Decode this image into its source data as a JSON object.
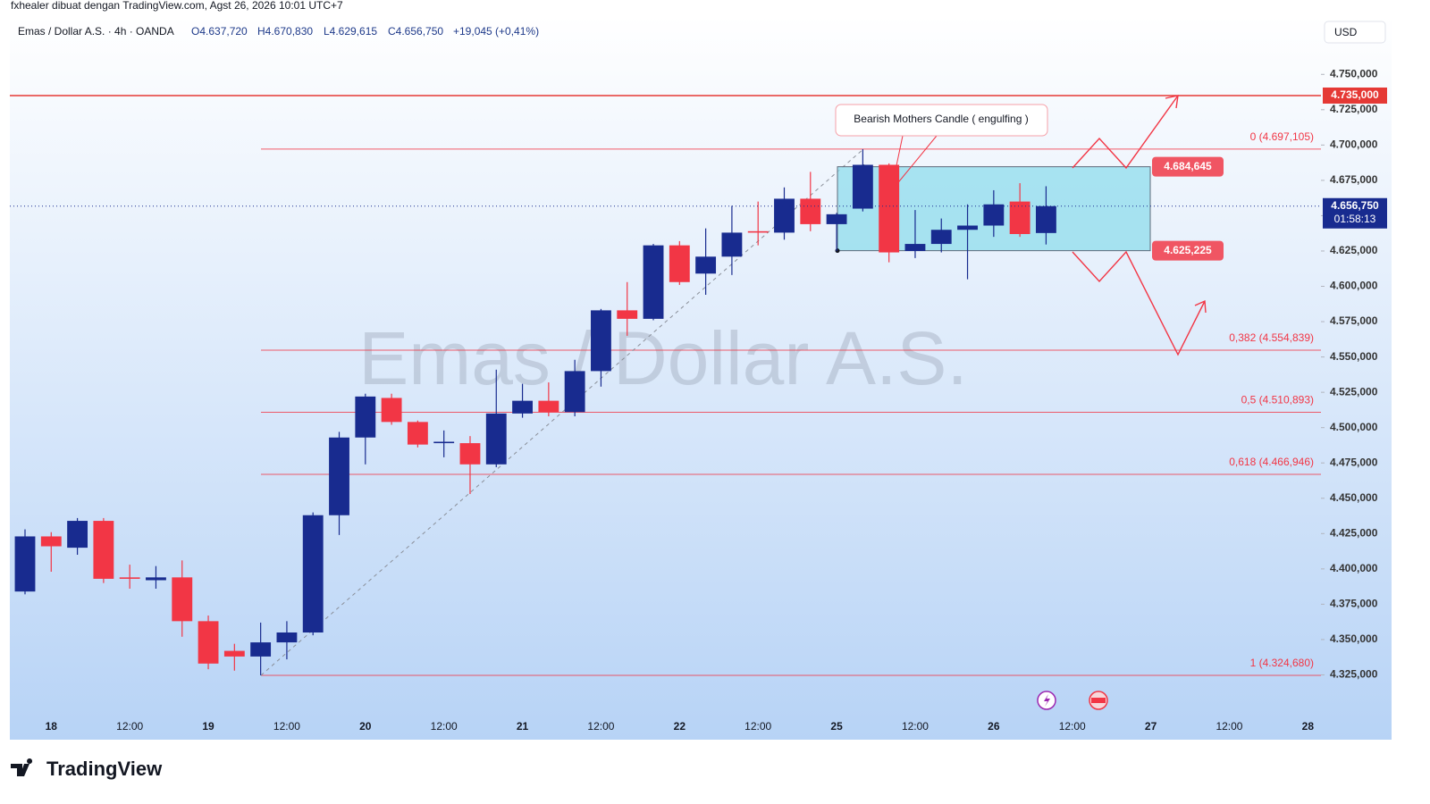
{
  "header": {
    "caption": "fxhealer dibuat dengan TradingView.com, Agst 26, 2026 10:01 UTC+7",
    "symbol": "Emas / Dollar A.S. · 4h · OANDA",
    "open": "O4.637,720",
    "high": "H4.670,830",
    "low": "L4.629,615",
    "close": "C4.656,750",
    "change": "+19,045 (+0,41%)",
    "currency": "USD"
  },
  "footer": {
    "logo": "TradingView"
  },
  "chart_data": {
    "type": "candlestick",
    "watermark": "Emas / Dollar A.S.",
    "categories": [
      null,
      "18",
      null,
      null,
      "12:00",
      null,
      null,
      "19",
      null,
      null,
      "12:00",
      null,
      null,
      "20",
      null,
      null,
      "12:00",
      null,
      null,
      "21",
      null,
      null,
      "12:00",
      null,
      null,
      "22",
      null,
      null,
      "12:00",
      null,
      null,
      "25",
      null,
      null,
      "12:00",
      null,
      null,
      "26",
      null,
      null,
      "12:00",
      null,
      null,
      "27",
      null,
      null,
      "12:00",
      null,
      null,
      "28"
    ],
    "open": [
      4384,
      4423,
      4415,
      4434,
      4394,
      4392,
      4394,
      4363,
      4342,
      4338,
      4348,
      4355,
      4438,
      4493,
      4521,
      4504,
      4489,
      4489,
      4474,
      4510,
      4519,
      4511,
      4540,
      4583,
      4577,
      4629,
      4609,
      4621,
      4639,
      4638,
      4662,
      4644,
      4655,
      4686,
      4625,
      4630,
      4640,
      4643,
      4660,
      4637.72,
      null,
      null,
      null,
      null,
      null,
      null,
      null,
      null,
      null,
      null
    ],
    "high": [
      4428,
      4426,
      4436,
      4436,
      4403,
      4402,
      4406,
      4367,
      4347,
      4362,
      4363,
      4440,
      4497,
      4524,
      4524,
      4505,
      4498,
      4494,
      4541,
      4531,
      4532,
      4548,
      4584,
      4603,
      4630,
      4632,
      4641,
      4657,
      4660,
      4670,
      4681,
      4652,
      4697.105,
      4687,
      4654,
      4648,
      4658,
      4668,
      4673,
      4670.83,
      null,
      null,
      null,
      null,
      null,
      null,
      null,
      null,
      null,
      null
    ],
    "low": [
      4382,
      4398,
      4410,
      4390,
      4386,
      4386,
      4352,
      4329,
      4328,
      4324.68,
      4336,
      4353,
      4424,
      4474,
      4502,
      4486,
      4479,
      4453,
      4472,
      4507,
      4508,
      4508,
      4529,
      4565,
      4576,
      4601,
      4594,
      4608,
      4629,
      4633,
      4639,
      4625,
      4653,
      4617,
      4620,
      4624,
      4605,
      4635,
      4635,
      4629.615,
      null,
      null,
      null,
      null,
      null,
      null,
      null,
      null,
      null,
      null
    ],
    "close": [
      4423,
      4416,
      4434,
      4393,
      4393,
      4394,
      4363,
      4333,
      4338,
      4348,
      4355,
      4438,
      4493,
      4522,
      4504,
      4488,
      4490,
      4474,
      4510,
      4519,
      4511,
      4540,
      4583,
      4577,
      4629,
      4603,
      4621,
      4638,
      4638,
      4662,
      4644,
      4651,
      4686,
      4624,
      4630,
      4640,
      4643,
      4658,
      4637,
      4656.75,
      null,
      null,
      null,
      null,
      null,
      null,
      null,
      null,
      null,
      null
    ],
    "up_color": "#182b8f",
    "down_color": "#f23645",
    "ylim": [
      4300,
      4790
    ],
    "yticks": [
      {
        "value": 4325,
        "label": "4.325,000"
      },
      {
        "value": 4350,
        "label": "4.350,000"
      },
      {
        "value": 4375,
        "label": "4.375,000"
      },
      {
        "value": 4400,
        "label": "4.400,000"
      },
      {
        "value": 4425,
        "label": "4.425,000"
      },
      {
        "value": 4450,
        "label": "4.450,000"
      },
      {
        "value": 4475,
        "label": "4.475,000"
      },
      {
        "value": 4500,
        "label": "4.500,000"
      },
      {
        "value": 4525,
        "label": "4.525,000"
      },
      {
        "value": 4550,
        "label": "4.550,000"
      },
      {
        "value": 4575,
        "label": "4.575,000"
      },
      {
        "value": 4600,
        "label": "4.600,000"
      },
      {
        "value": 4625,
        "label": "4.625,000"
      },
      {
        "value": 4650,
        "label": "4.650,000"
      },
      {
        "value": 4675,
        "label": "4.675,000"
      },
      {
        "value": 4700,
        "label": "4.700,000"
      },
      {
        "value": 4725,
        "label": "4.725,000"
      },
      {
        "value": 4750,
        "label": "4.750,000"
      }
    ],
    "fib": [
      {
        "value": 4697.105,
        "label": "0 (4.697,105)"
      },
      {
        "value": 4554.839,
        "label": "0,382 (4.554,839)"
      },
      {
        "value": 4510.893,
        "label": "0,5 (4.510,893)"
      },
      {
        "value": 4466.946,
        "label": "0,618 (4.466,946)"
      },
      {
        "value": 4324.68,
        "label": "1 (4.324,680)"
      }
    ],
    "resistance": {
      "value": 4735,
      "label": "4.735,000"
    },
    "last_price": {
      "value": 4656.75,
      "label": "4.656,750"
    },
    "countdown": "01:58:13",
    "zone": {
      "high": {
        "value": 4684.645,
        "label": "4.684,645"
      },
      "low": {
        "value": 4625.225,
        "label": "4.625,225"
      }
    },
    "annotation": "Bearish Mothers Candle ( engulfing )"
  }
}
